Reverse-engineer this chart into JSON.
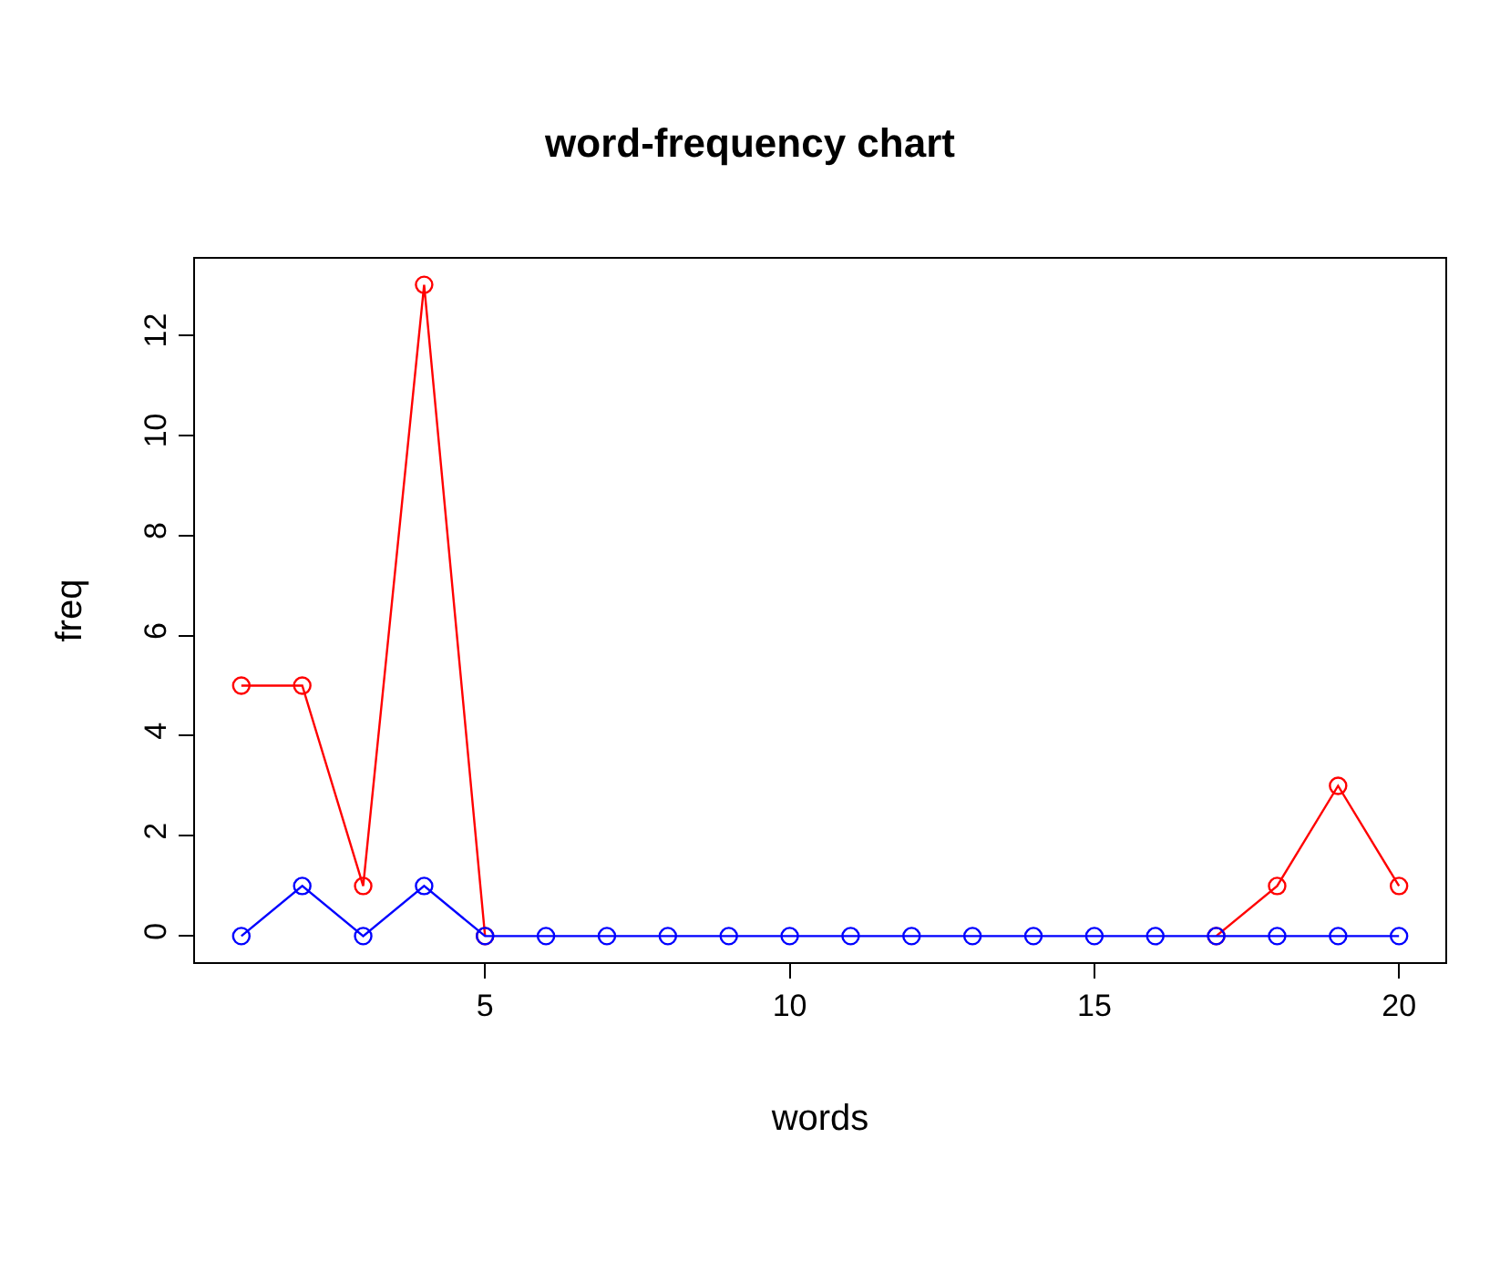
{
  "chart_data": {
    "type": "line",
    "title": "word-frequency chart",
    "xlabel": "words",
    "ylabel": "freq",
    "x": [
      1,
      2,
      3,
      4,
      5,
      6,
      7,
      8,
      9,
      10,
      11,
      12,
      13,
      14,
      15,
      16,
      17,
      18,
      19,
      20
    ],
    "series": [
      {
        "color": "#ff0000",
        "values": [
          5,
          5,
          1,
          13,
          0,
          null,
          null,
          null,
          null,
          null,
          null,
          null,
          null,
          null,
          null,
          null,
          0,
          1,
          3,
          1
        ]
      },
      {
        "color": "#0000ff",
        "values": [
          0,
          1,
          0,
          1,
          0,
          0,
          0,
          0,
          0,
          0,
          0,
          0,
          0,
          0,
          0,
          0,
          0,
          0,
          0,
          0
        ]
      }
    ],
    "xlim": [
      0.24,
      20.76
    ],
    "xticks": [
      5,
      10,
      15,
      20
    ],
    "ylim": [
      -0.52,
      13.52
    ],
    "yticks": [
      0,
      2,
      4,
      6,
      8,
      10,
      12
    ],
    "marker": "circle",
    "line_style": "solid",
    "grid": false,
    "legend": false
  }
}
